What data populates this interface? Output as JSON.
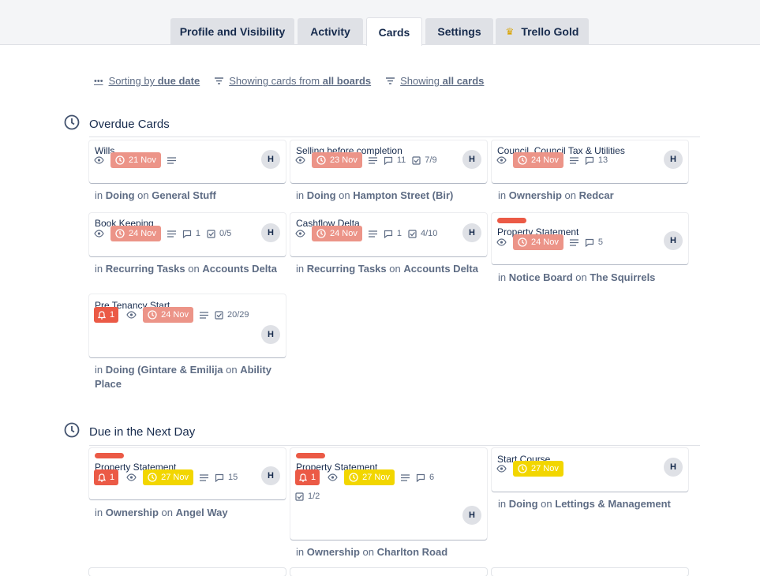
{
  "tabs": [
    {
      "label": "Profile and Visibility"
    },
    {
      "label": "Activity"
    },
    {
      "label": "Cards"
    },
    {
      "label": "Settings"
    },
    {
      "label": "Trello Gold"
    }
  ],
  "filters": {
    "sort_prefix": "Sorting by ",
    "sort_value": "due date",
    "boards_prefix": "Showing cards from ",
    "boards_value": "all boards",
    "cards_prefix": "Showing ",
    "cards_value": "all cards"
  },
  "sections": {
    "overdue": {
      "title": "Overdue Cards"
    },
    "next_day": {
      "title": "Due in the Next Day"
    }
  },
  "overdue_cards": [
    {
      "title": "Wills",
      "due": "21 Nov",
      "avatar": "H",
      "list": "Doing",
      "board": "General Stuff"
    },
    {
      "title": "Selling before completion",
      "due": "23 Nov",
      "comments": "11",
      "checklist": "7/9",
      "avatar": "H",
      "list": "Doing",
      "board": "Hampton Street (Bir)"
    },
    {
      "title": "Council, Council Tax & Utilities",
      "due": "24 Nov",
      "comments": "13",
      "avatar": "H",
      "list": "Ownership",
      "board": "Redcar"
    },
    {
      "title": "Book Keeping",
      "due": "24 Nov",
      "comments": "1",
      "checklist": "0/5",
      "avatar": "H",
      "list": "Recurring Tasks",
      "board": "Accounts Delta"
    },
    {
      "title": "Cashflow Delta",
      "due": "24 Nov",
      "comments": "1",
      "checklist": "4/10",
      "avatar": "H",
      "list": "Recurring Tasks",
      "board": "Accounts Delta"
    },
    {
      "title": "Property Statement",
      "due": "24 Nov",
      "comments": "5",
      "avatar": "H",
      "list": "Notice Board",
      "board": "The Squirrels"
    },
    {
      "title": "Pre Tenancy Start",
      "notifications": "1",
      "due": "24 Nov",
      "checklist": "20/29",
      "avatar": "H",
      "list": "Doing (Gintare & Emilija",
      "board": "Ability Place"
    }
  ],
  "next_day_cards": [
    {
      "title": "Property Statement",
      "notifications": "1",
      "due": "27 Nov",
      "comments": "15",
      "avatar": "H",
      "list": "Ownership",
      "board": "Angel Way"
    },
    {
      "title": "Property Statement",
      "notifications": "1",
      "due": "27 Nov",
      "comments": "6",
      "checklist": "1/2",
      "avatar": "H",
      "list": "Ownership",
      "board": "Charlton Road"
    },
    {
      "title": "Start Course",
      "due": "27 Nov",
      "avatar": "H",
      "list": "Doing",
      "board": "Lettings & Management"
    }
  ],
  "text": {
    "in": "in ",
    "on": " on "
  },
  "colors": {
    "overdue": "#ec9488",
    "due_soon": "#f2d600",
    "label_red": "#eb5a46",
    "notification": "#eb5a46"
  }
}
